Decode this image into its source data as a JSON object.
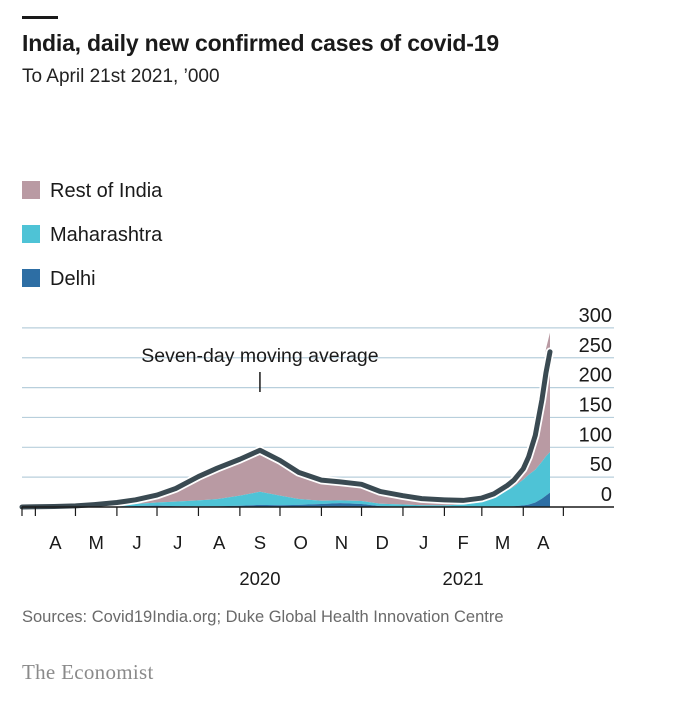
{
  "header": {
    "title": "India, daily new confirmed cases of covid-19",
    "subtitle": "To April 21st 2021, ’0​00"
  },
  "footer": {
    "source": "Sources: Covid19India.org; Duke Global Health Innovation Centre",
    "brand": "The Economist"
  },
  "colors": {
    "rest_of_india": "#b99aa3",
    "maharashtra": "#4ec3d6",
    "delhi": "#2d6ea4",
    "moving_average": "#3a4a52",
    "gridline": "#b8cfdc",
    "baseline": "#1a1a1a"
  },
  "chart_data": {
    "type": "area",
    "stacked": true,
    "title": "India, daily new confirmed cases of covid-19",
    "subtitle": "To April 21st 2021, ’0​00",
    "ylim": [
      0,
      300
    ],
    "yticks": [
      "300",
      "250",
      "200",
      "150",
      "100",
      "50",
      "0"
    ],
    "y_axis_side": "right",
    "grid": true,
    "legend_placement": "top-left",
    "month_labels": [
      "A",
      "M",
      "J",
      "J",
      "A",
      "S",
      "O",
      "N",
      "D",
      "J",
      "F",
      "M",
      "A"
    ],
    "year_labels": [
      {
        "label": "2020",
        "month": "2020-09"
      },
      {
        "label": "2021",
        "month": "2021-02"
      }
    ],
    "annotation": {
      "text": "Seven-day moving average",
      "date": "2020-09-16"
    },
    "legend": [
      "Rest of India",
      "Maharashtra",
      "Delhi"
    ],
    "dates": [
      "2020-03-22",
      "2020-04-01",
      "2020-04-15",
      "2020-05-01",
      "2020-05-15",
      "2020-06-01",
      "2020-06-15",
      "2020-07-01",
      "2020-07-15",
      "2020-08-01",
      "2020-08-15",
      "2020-09-01",
      "2020-09-16",
      "2020-10-01",
      "2020-10-15",
      "2020-11-01",
      "2020-11-15",
      "2020-12-01",
      "2020-12-15",
      "2021-01-01",
      "2021-01-15",
      "2021-02-01",
      "2021-02-15",
      "2021-03-01",
      "2021-03-10",
      "2021-03-20",
      "2021-03-25",
      "2021-04-01",
      "2021-04-05",
      "2021-04-10",
      "2021-04-15",
      "2021-04-18",
      "2021-04-21"
    ],
    "series": [
      {
        "name": "Delhi",
        "values": [
          0,
          0.1,
          0.1,
          0.2,
          0.4,
          0.9,
          1.7,
          2.4,
          1.5,
          1.1,
          1.2,
          2.0,
          3.5,
          3.0,
          3.5,
          5.0,
          6.5,
          5.0,
          1.5,
          0.6,
          0.3,
          0.2,
          0.1,
          0.2,
          0.3,
          0.8,
          1.2,
          2.8,
          4.0,
          7.5,
          14,
          19,
          24
        ]
      },
      {
        "name": "Maharashtra",
        "values": [
          0.05,
          0.2,
          0.3,
          0.8,
          1.4,
          2.4,
          3.3,
          5.2,
          7.5,
          10,
          12,
          17,
          22,
          16,
          10,
          5.5,
          4.5,
          5.0,
          4.0,
          3.5,
          2.7,
          2.5,
          4.0,
          8.0,
          14,
          27,
          33,
          43,
          50,
          55,
          62,
          66,
          68
        ]
      },
      {
        "name": "Rest of India",
        "values": [
          0.05,
          0.2,
          0.4,
          1.2,
          2.5,
          4.5,
          7.5,
          13,
          22,
          41,
          53,
          62,
          70,
          55,
          44,
          34,
          28,
          26,
          19,
          14,
          11,
          9,
          8,
          5,
          5,
          6,
          10,
          20,
          38,
          68,
          136,
          180,
          200
        ]
      }
    ],
    "moving_average": {
      "name": "Seven-day moving average",
      "values": [
        0.1,
        0.4,
        0.8,
        1.8,
        4.0,
        7.5,
        12,
        20,
        31,
        51,
        65,
        80,
        95,
        78,
        58,
        45,
        42,
        38,
        26,
        19,
        14,
        12,
        11,
        15,
        22,
        36,
        45,
        64,
        84,
        120,
        180,
        225,
        260
      ]
    }
  }
}
